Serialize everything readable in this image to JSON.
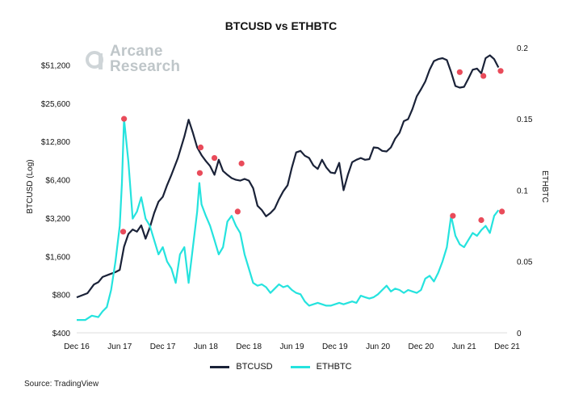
{
  "chart_data": {
    "type": "line",
    "title": "BTCUSD vs ETHBTC",
    "x_ticks": [
      "Dec 16",
      "Jun 17",
      "Dec 17",
      "Jun 18",
      "Dec 18",
      "Jun 19",
      "Dec 19",
      "Jun 20",
      "Dec 20",
      "Jun 21",
      "Dec 21"
    ],
    "left_axis": {
      "label": "BTCUSD (Log)",
      "scale": "log",
      "range": [
        400,
        80000
      ],
      "ticks": [
        "$400",
        "$800",
        "$1,600",
        "$3,200",
        "$6,400",
        "$12,800",
        "$25,600",
        "$51,200"
      ],
      "tick_values": [
        400,
        800,
        1600,
        3200,
        6400,
        12800,
        25600,
        51200
      ]
    },
    "right_axis": {
      "label": "ETHBTC",
      "scale": "linear",
      "range": [
        0,
        0.205
      ],
      "ticks": [
        "0",
        "0.05",
        "0.1",
        "0.15",
        "0.2"
      ],
      "tick_values": [
        0,
        0.05,
        0.1,
        0.15,
        0.2
      ]
    },
    "series": [
      {
        "name": "BTCUSD",
        "axis": "left",
        "color": "#1a2238",
        "points": [
          [
            0,
            760
          ],
          [
            0.25,
            820
          ],
          [
            0.4,
            960
          ],
          [
            0.5,
            1000
          ],
          [
            0.6,
            1100
          ],
          [
            0.75,
            1150
          ],
          [
            0.9,
            1200
          ],
          [
            1.0,
            1250
          ],
          [
            1.1,
            1900
          ],
          [
            1.2,
            2400
          ],
          [
            1.3,
            2600
          ],
          [
            1.4,
            2500
          ],
          [
            1.5,
            2800
          ],
          [
            1.6,
            2200
          ],
          [
            1.7,
            2700
          ],
          [
            1.8,
            3500
          ],
          [
            1.9,
            4300
          ],
          [
            2.0,
            4700
          ],
          [
            2.1,
            5800
          ],
          [
            2.2,
            7000
          ],
          [
            2.35,
            9500
          ],
          [
            2.5,
            14000
          ],
          [
            2.6,
            19000
          ],
          [
            2.7,
            15000
          ],
          [
            2.8,
            11500
          ],
          [
            2.9,
            10000
          ],
          [
            3.0,
            9000
          ],
          [
            3.1,
            8200
          ],
          [
            3.2,
            7000
          ],
          [
            3.3,
            9200
          ],
          [
            3.4,
            7500
          ],
          [
            3.5,
            7000
          ],
          [
            3.6,
            6600
          ],
          [
            3.7,
            6400
          ],
          [
            3.8,
            6300
          ],
          [
            3.9,
            6500
          ],
          [
            4.0,
            6300
          ],
          [
            4.1,
            5500
          ],
          [
            4.2,
            4000
          ],
          [
            4.3,
            3700
          ],
          [
            4.4,
            3300
          ],
          [
            4.5,
            3500
          ],
          [
            4.6,
            3800
          ],
          [
            4.7,
            4500
          ],
          [
            4.8,
            5200
          ],
          [
            4.9,
            5800
          ],
          [
            5.0,
            8000
          ],
          [
            5.1,
            10500
          ],
          [
            5.2,
            10800
          ],
          [
            5.3,
            9900
          ],
          [
            5.4,
            9500
          ],
          [
            5.5,
            8300
          ],
          [
            5.6,
            7800
          ],
          [
            5.7,
            9200
          ],
          [
            5.8,
            8000
          ],
          [
            5.9,
            7300
          ],
          [
            6.0,
            7200
          ],
          [
            6.1,
            8700
          ],
          [
            6.2,
            5300
          ],
          [
            6.3,
            7000
          ],
          [
            6.4,
            8800
          ],
          [
            6.5,
            9200
          ],
          [
            6.6,
            9500
          ],
          [
            6.7,
            9200
          ],
          [
            6.8,
            9300
          ],
          [
            6.9,
            11500
          ],
          [
            7.0,
            11400
          ],
          [
            7.1,
            10800
          ],
          [
            7.2,
            10700
          ],
          [
            7.3,
            11500
          ],
          [
            7.4,
            13500
          ],
          [
            7.5,
            15000
          ],
          [
            7.6,
            18500
          ],
          [
            7.7,
            19200
          ],
          [
            7.8,
            23000
          ],
          [
            7.9,
            29000
          ],
          [
            8.0,
            33000
          ],
          [
            8.1,
            38000
          ],
          [
            8.2,
            47000
          ],
          [
            8.3,
            55000
          ],
          [
            8.4,
            57000
          ],
          [
            8.5,
            58000
          ],
          [
            8.6,
            56000
          ],
          [
            8.7,
            45000
          ],
          [
            8.8,
            35000
          ],
          [
            8.9,
            34000
          ],
          [
            9.0,
            34500
          ],
          [
            9.1,
            40000
          ],
          [
            9.2,
            47000
          ],
          [
            9.3,
            48000
          ],
          [
            9.4,
            44000
          ],
          [
            9.5,
            58000
          ],
          [
            9.6,
            61000
          ],
          [
            9.7,
            57000
          ],
          [
            9.8,
            49000
          ]
        ]
      },
      {
        "name": "ETHBTC",
        "axis": "right",
        "color": "#25e3de",
        "points": [
          [
            0,
            0.009
          ],
          [
            0.2,
            0.009
          ],
          [
            0.35,
            0.012
          ],
          [
            0.5,
            0.011
          ],
          [
            0.6,
            0.015
          ],
          [
            0.7,
            0.018
          ],
          [
            0.8,
            0.03
          ],
          [
            0.9,
            0.05
          ],
          [
            1.0,
            0.075
          ],
          [
            1.05,
            0.105
          ],
          [
            1.1,
            0.15
          ],
          [
            1.2,
            0.12
          ],
          [
            1.3,
            0.08
          ],
          [
            1.4,
            0.085
          ],
          [
            1.5,
            0.095
          ],
          [
            1.6,
            0.08
          ],
          [
            1.7,
            0.075
          ],
          [
            1.8,
            0.065
          ],
          [
            1.9,
            0.055
          ],
          [
            2.0,
            0.06
          ],
          [
            2.1,
            0.05
          ],
          [
            2.2,
            0.045
          ],
          [
            2.3,
            0.035
          ],
          [
            2.4,
            0.055
          ],
          [
            2.5,
            0.06
          ],
          [
            2.6,
            0.035
          ],
          [
            2.7,
            0.06
          ],
          [
            2.8,
            0.085
          ],
          [
            2.85,
            0.105
          ],
          [
            2.9,
            0.09
          ],
          [
            3.0,
            0.082
          ],
          [
            3.1,
            0.075
          ],
          [
            3.2,
            0.065
          ],
          [
            3.3,
            0.055
          ],
          [
            3.4,
            0.06
          ],
          [
            3.5,
            0.078
          ],
          [
            3.6,
            0.082
          ],
          [
            3.7,
            0.075
          ],
          [
            3.8,
            0.07
          ],
          [
            3.9,
            0.055
          ],
          [
            4.0,
            0.045
          ],
          [
            4.1,
            0.035
          ],
          [
            4.2,
            0.033
          ],
          [
            4.3,
            0.034
          ],
          [
            4.4,
            0.032
          ],
          [
            4.5,
            0.028
          ],
          [
            4.6,
            0.031
          ],
          [
            4.7,
            0.034
          ],
          [
            4.8,
            0.032
          ],
          [
            4.9,
            0.033
          ],
          [
            5.0,
            0.03
          ],
          [
            5.1,
            0.028
          ],
          [
            5.2,
            0.027
          ],
          [
            5.3,
            0.022
          ],
          [
            5.4,
            0.019
          ],
          [
            5.5,
            0.02
          ],
          [
            5.6,
            0.021
          ],
          [
            5.7,
            0.02
          ],
          [
            5.8,
            0.019
          ],
          [
            5.9,
            0.019
          ],
          [
            6.0,
            0.02
          ],
          [
            6.1,
            0.021
          ],
          [
            6.2,
            0.02
          ],
          [
            6.3,
            0.021
          ],
          [
            6.4,
            0.022
          ],
          [
            6.5,
            0.021
          ],
          [
            6.6,
            0.026
          ],
          [
            6.7,
            0.025
          ],
          [
            6.8,
            0.024
          ],
          [
            6.9,
            0.025
          ],
          [
            7.0,
            0.027
          ],
          [
            7.1,
            0.03
          ],
          [
            7.2,
            0.033
          ],
          [
            7.3,
            0.029
          ],
          [
            7.4,
            0.031
          ],
          [
            7.5,
            0.03
          ],
          [
            7.6,
            0.028
          ],
          [
            7.7,
            0.03
          ],
          [
            7.8,
            0.029
          ],
          [
            7.9,
            0.028
          ],
          [
            8.0,
            0.03
          ],
          [
            8.1,
            0.038
          ],
          [
            8.2,
            0.04
          ],
          [
            8.3,
            0.036
          ],
          [
            8.4,
            0.042
          ],
          [
            8.5,
            0.05
          ],
          [
            8.6,
            0.06
          ],
          [
            8.7,
            0.082
          ],
          [
            8.8,
            0.068
          ],
          [
            8.9,
            0.062
          ],
          [
            9.0,
            0.06
          ],
          [
            9.1,
            0.065
          ],
          [
            9.2,
            0.07
          ],
          [
            9.3,
            0.068
          ],
          [
            9.4,
            0.072
          ],
          [
            9.5,
            0.075
          ],
          [
            9.6,
            0.07
          ],
          [
            9.7,
            0.082
          ],
          [
            9.8,
            0.086
          ]
        ]
      }
    ],
    "markers": [
      {
        "axis": "left",
        "x": 1.08,
        "y": 2500
      },
      {
        "axis": "left",
        "x": 2.88,
        "y": 11500
      },
      {
        "axis": "left",
        "x": 3.2,
        "y": 9500
      },
      {
        "axis": "left",
        "x": 3.83,
        "y": 8600
      },
      {
        "axis": "left",
        "x": 8.9,
        "y": 45000
      },
      {
        "axis": "left",
        "x": 9.45,
        "y": 42000
      },
      {
        "axis": "left",
        "x": 9.85,
        "y": 46000
      },
      {
        "axis": "right",
        "x": 1.1,
        "y": 0.15
      },
      {
        "axis": "right",
        "x": 2.86,
        "y": 0.112
      },
      {
        "axis": "right",
        "x": 3.74,
        "y": 0.085
      },
      {
        "axis": "right",
        "x": 8.74,
        "y": 0.082
      },
      {
        "axis": "right",
        "x": 9.4,
        "y": 0.079
      },
      {
        "axis": "right",
        "x": 9.88,
        "y": 0.085
      }
    ],
    "marker_color": "#e94b5a",
    "legend": [
      "BTCUSD",
      "ETHBTC"
    ],
    "legend_placement": "bottom-center",
    "grid": false
  },
  "logo": {
    "line1": "Arcane",
    "line2": "Research"
  },
  "source": "Source: TradingView"
}
